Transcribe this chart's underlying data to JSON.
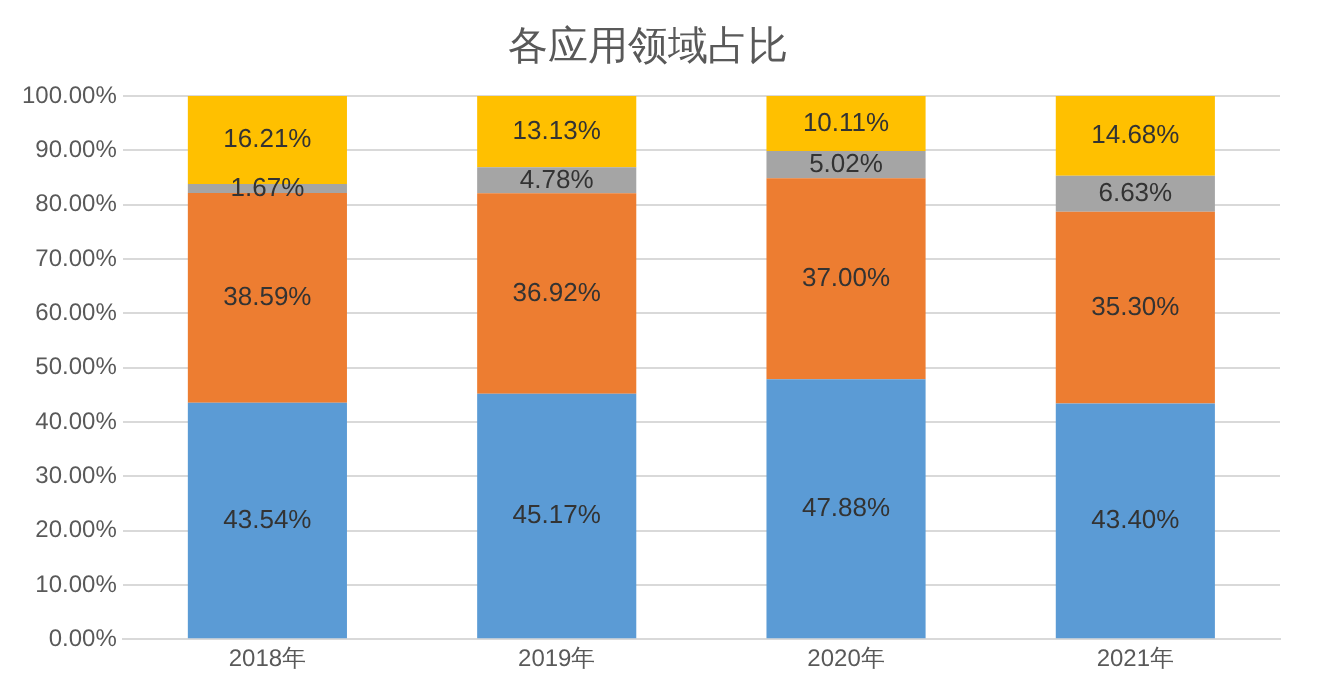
{
  "chart_data": {
    "type": "bar",
    "title": "各应用领域占比",
    "stacked": true,
    "grid": "y",
    "legend": false,
    "categories": [
      "2018年",
      "2019年",
      "2020年",
      "2021年"
    ],
    "series": [
      {
        "color": "#5b9bd5",
        "values": [
          43.54,
          45.17,
          47.88,
          43.4
        ],
        "value_labels": [
          "43.54%",
          "45.17%",
          "47.88%",
          "43.40%"
        ]
      },
      {
        "color": "#ed7d31",
        "values": [
          38.59,
          36.92,
          37.0,
          35.3
        ],
        "value_labels": [
          "38.59%",
          "36.92%",
          "37.00%",
          "35.30%"
        ]
      },
      {
        "color": "#a5a5a5",
        "values": [
          1.67,
          4.78,
          5.02,
          6.63
        ],
        "value_labels": [
          "1.67%",
          "4.78%",
          "5.02%",
          "6.63%"
        ]
      },
      {
        "color": "#ffc000",
        "values": [
          16.21,
          13.13,
          10.11,
          14.68
        ],
        "value_labels": [
          "16.21%",
          "13.13%",
          "10.11%",
          "14.68%"
        ]
      }
    ],
    "ylim": [
      0,
      100.01
    ],
    "yticks": [
      {
        "value": 0,
        "label": "0.00%"
      },
      {
        "value": 10,
        "label": "10.00%"
      },
      {
        "value": 20,
        "label": "20.00%"
      },
      {
        "value": 30,
        "label": "30.00%"
      },
      {
        "value": 40,
        "label": "40.00%"
      },
      {
        "value": 50,
        "label": "50.00%"
      },
      {
        "value": 60,
        "label": "60.00%"
      },
      {
        "value": 70,
        "label": "70.00%"
      },
      {
        "value": 80,
        "label": "80.00%"
      },
      {
        "value": 90,
        "label": "90.00%"
      },
      {
        "value": 100,
        "label": "100.00%"
      }
    ]
  }
}
